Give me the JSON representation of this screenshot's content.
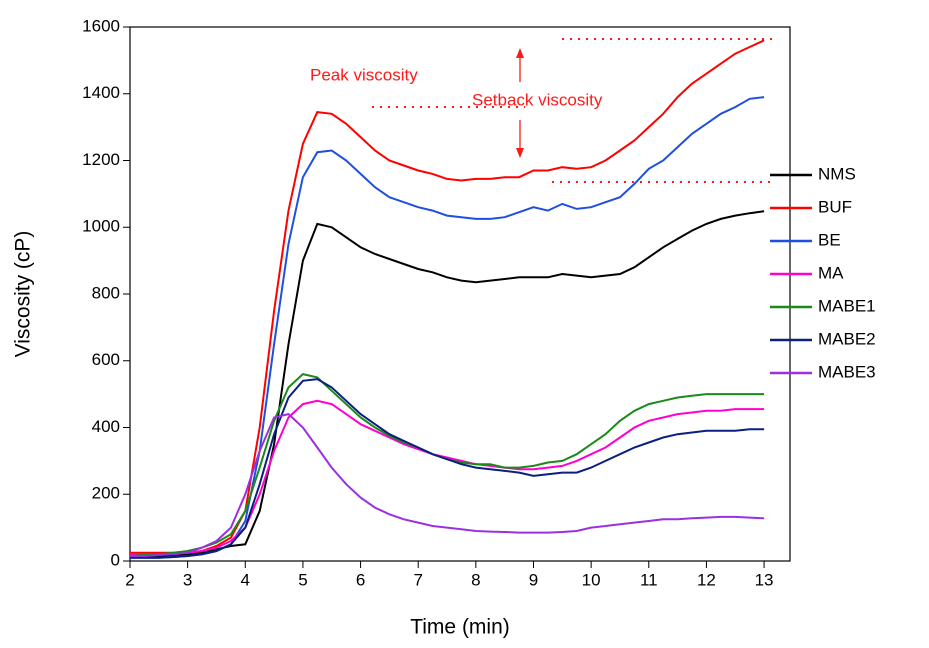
{
  "chart_data": {
    "type": "line",
    "x_label": "Time (min)",
    "y_label": "Viscosity (cP)",
    "annotations": [
      "Peak viscosity",
      "Setback viscosity"
    ],
    "xlim": [
      2,
      13.45
    ],
    "ylim": [
      0,
      1600
    ],
    "xticks": [
      2,
      3,
      4,
      5,
      6,
      7,
      8,
      9,
      10,
      11,
      12,
      13
    ],
    "yticks": [
      0,
      200,
      400,
      600,
      800,
      1000,
      1200,
      1400,
      1600
    ],
    "x": [
      2,
      2.25,
      2.5,
      2.75,
      3,
      3.25,
      3.5,
      3.75,
      4,
      4.25,
      4.5,
      4.75,
      5,
      5.25,
      5.5,
      5.75,
      6,
      6.25,
      6.5,
      6.75,
      7,
      7.25,
      7.5,
      7.75,
      8,
      8.25,
      8.5,
      8.75,
      9,
      9.25,
      9.5,
      9.75,
      10,
      10.25,
      10.5,
      10.75,
      11,
      11.25,
      11.5,
      11.75,
      12,
      12.25,
      12.5,
      12.75,
      13
    ],
    "series": [
      {
        "name": "NMS",
        "color": "#000000",
        "values": [
          15,
          15,
          15,
          18,
          20,
          25,
          35,
          45,
          50,
          150,
          350,
          650,
          900,
          1010,
          1000,
          970,
          940,
          920,
          905,
          890,
          875,
          865,
          850,
          840,
          835,
          840,
          845,
          850,
          850,
          850,
          860,
          855,
          850,
          855,
          860,
          880,
          910,
          940,
          965,
          990,
          1010,
          1025,
          1035,
          1042,
          1048
        ]
      },
      {
        "name": "BUF",
        "color": "#ff0000",
        "values": [
          25,
          25,
          25,
          25,
          25,
          30,
          45,
          70,
          150,
          400,
          750,
          1050,
          1250,
          1345,
          1340,
          1310,
          1270,
          1230,
          1200,
          1185,
          1170,
          1160,
          1145,
          1140,
          1145,
          1145,
          1150,
          1150,
          1170,
          1170,
          1180,
          1175,
          1180,
          1200,
          1230,
          1260,
          1300,
          1340,
          1390,
          1430,
          1460,
          1490,
          1520,
          1540,
          1560
        ]
      },
      {
        "name": "BE",
        "color": "#1f4fe0",
        "values": [
          10,
          10,
          10,
          12,
          15,
          20,
          30,
          50,
          120,
          330,
          650,
          950,
          1150,
          1225,
          1230,
          1200,
          1160,
          1120,
          1090,
          1075,
          1060,
          1050,
          1035,
          1030,
          1025,
          1025,
          1030,
          1045,
          1060,
          1050,
          1070,
          1055,
          1060,
          1075,
          1090,
          1130,
          1175,
          1200,
          1240,
          1280,
          1310,
          1340,
          1360,
          1385,
          1390
        ]
      },
      {
        "name": "MA",
        "color": "#ff00d0",
        "values": [
          20,
          20,
          20,
          22,
          25,
          30,
          40,
          60,
          100,
          200,
          330,
          430,
          470,
          480,
          470,
          440,
          410,
          390,
          370,
          350,
          335,
          320,
          310,
          300,
          290,
          285,
          280,
          275,
          275,
          280,
          285,
          300,
          320,
          340,
          370,
          400,
          420,
          430,
          440,
          445,
          450,
          450,
          455,
          455,
          455
        ]
      },
      {
        "name": "MABE1",
        "color": "#1a8a1a",
        "values": [
          15,
          18,
          20,
          25,
          30,
          40,
          55,
          80,
          150,
          280,
          420,
          520,
          560,
          550,
          510,
          470,
          430,
          400,
          375,
          355,
          340,
          320,
          305,
          295,
          290,
          290,
          280,
          280,
          285,
          295,
          300,
          320,
          350,
          380,
          420,
          450,
          470,
          480,
          490,
          495,
          500,
          500,
          500,
          500,
          500
        ]
      },
      {
        "name": "MABE2",
        "color": "#0a1f80",
        "values": [
          10,
          10,
          10,
          12,
          15,
          20,
          30,
          50,
          100,
          230,
          380,
          490,
          540,
          545,
          520,
          480,
          440,
          410,
          380,
          360,
          340,
          320,
          305,
          290,
          280,
          275,
          270,
          265,
          255,
          260,
          265,
          265,
          280,
          300,
          320,
          340,
          355,
          370,
          380,
          385,
          390,
          390,
          390,
          395,
          395
        ]
      },
      {
        "name": "MABE3",
        "color": "#9b30e0",
        "values": [
          15,
          15,
          18,
          20,
          25,
          40,
          60,
          100,
          200,
          330,
          430,
          440,
          400,
          340,
          280,
          230,
          190,
          160,
          140,
          125,
          115,
          105,
          100,
          95,
          90,
          88,
          87,
          85,
          85,
          85,
          87,
          90,
          100,
          105,
          110,
          115,
          120,
          125,
          125,
          128,
          130,
          132,
          132,
          130,
          128
        ]
      }
    ]
  }
}
